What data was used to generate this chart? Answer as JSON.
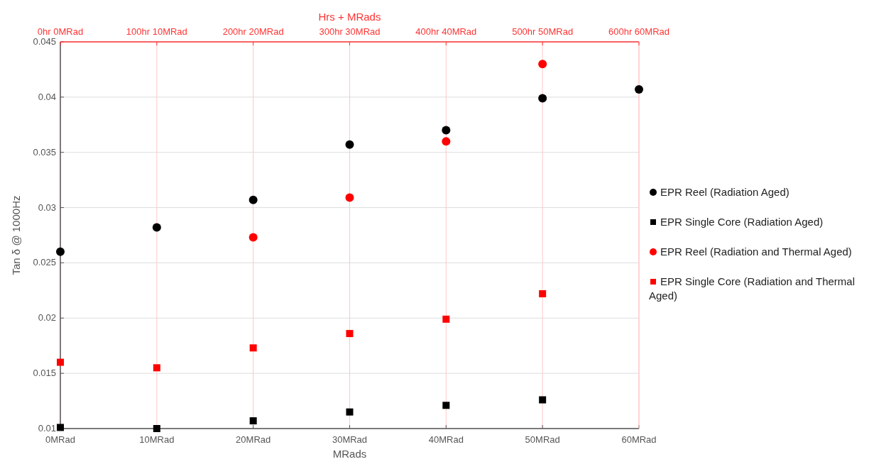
{
  "chart_data": {
    "type": "scatter",
    "xlabel": "MRads",
    "ylabel": "Tan δ @ 1000Hz",
    "x2label": "Hrs + MRads",
    "xlim": [
      0,
      60
    ],
    "xticks": [
      {
        "value": 0,
        "label": "0MRad"
      },
      {
        "value": 10,
        "label": "10MRad"
      },
      {
        "value": 20,
        "label": "20MRad"
      },
      {
        "value": 30,
        "label": "30MRad"
      },
      {
        "value": 40,
        "label": "40MRad"
      },
      {
        "value": 50,
        "label": "50MRad"
      },
      {
        "value": 60,
        "label": "60MRad"
      }
    ],
    "annotations": [
      "0hr 0MRad",
      "100hr 10MRad",
      "200hr 20MRad",
      "300hr 30MRad",
      "400hr 40MRad",
      "500hr 50MRad",
      "600hr 60MRad"
    ],
    "ylim": [
      0.01,
      0.045
    ],
    "yticks": [
      0.01,
      0.015,
      0.02,
      0.025,
      0.03,
      0.035,
      0.04,
      0.045
    ],
    "grid": true,
    "legend": "right",
    "series": [
      {
        "name": "EPR Reel (Radiation Aged)",
        "color": "#000000",
        "marker": "circle",
        "x": [
          0,
          10,
          20,
          30,
          40,
          50,
          60
        ],
        "values": [
          0.026,
          0.0282,
          0.0307,
          0.0357,
          0.037,
          0.0399,
          0.0407
        ]
      },
      {
        "name": "EPR Single Core (Radiation Aged)",
        "color": "#000000",
        "marker": "square",
        "x": [
          0,
          10,
          20,
          30,
          40,
          50
        ],
        "values": [
          0.0101,
          0.01,
          0.0107,
          0.0115,
          0.0121,
          0.0126
        ]
      },
      {
        "name": "EPR Reel (Radiation and Thermal Aged)",
        "color": "#ff0000",
        "marker": "circle",
        "x": [
          20,
          30,
          40,
          50
        ],
        "values": [
          0.0273,
          0.0309,
          0.036,
          0.043
        ]
      },
      {
        "name": "EPR Single Core (Radiation and Thermal Aged)",
        "color": "#ff0000",
        "marker": "square",
        "x": [
          0,
          10,
          20,
          30,
          40,
          50
        ],
        "values": [
          0.016,
          0.0155,
          0.0173,
          0.0186,
          0.0199,
          0.0222
        ]
      }
    ]
  }
}
